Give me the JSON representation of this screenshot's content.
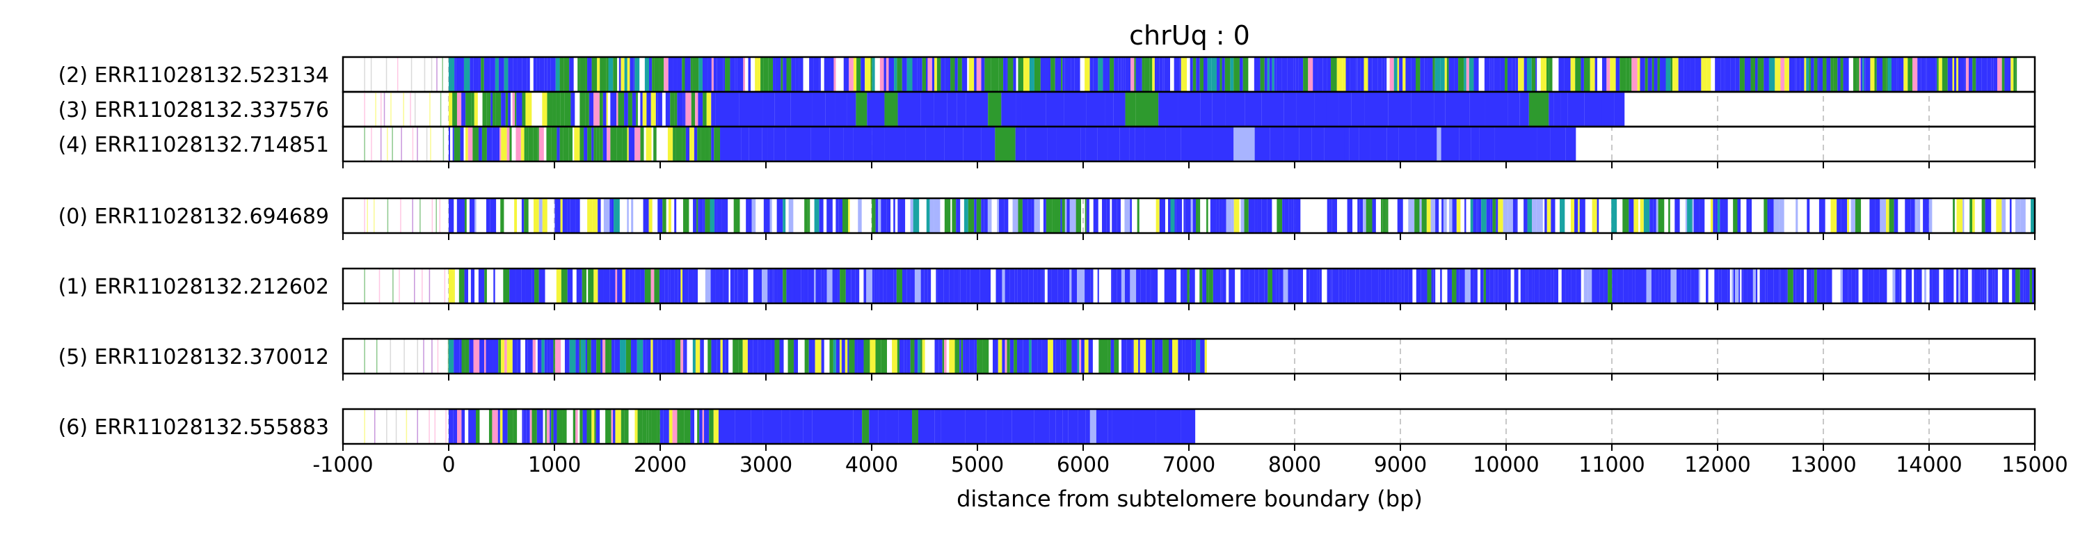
{
  "chart_data": {
    "type": "heatmap",
    "title": "chrUq : 0",
    "xlabel": "distance from subtelomere boundary (bp)",
    "ylabel": "",
    "xlim": [
      -1000,
      15000
    ],
    "x_ticks": [
      -1000,
      0,
      1000,
      2000,
      3000,
      4000,
      5000,
      6000,
      7000,
      8000,
      9000,
      10000,
      11000,
      12000,
      13000,
      14000,
      15000
    ],
    "x_tick_labels": [
      "-1000",
      "0",
      "1000",
      "2000",
      "3000",
      "4000",
      "5000",
      "6000",
      "7000",
      "8000",
      "9000",
      "10000",
      "11000",
      "12000",
      "13000",
      "14000",
      "15000"
    ],
    "grid": "vertical dashed at x ticks",
    "groups": [
      {
        "reads": [
          {
            "label": "(2) ERR11028132.523134",
            "start": -1000,
            "end": 14830,
            "style": "mixed"
          },
          {
            "label": "(3) ERR11028132.337576",
            "start": -1000,
            "end": 11120,
            "style": "solid-tail"
          },
          {
            "label": "(4) ERR11028132.714851",
            "start": -1000,
            "end": 10660,
            "style": "solid-tail"
          }
        ]
      },
      {
        "reads": [
          {
            "label": "(0) ERR11028132.694689",
            "start": -1000,
            "end": 15000,
            "style": "sparse"
          }
        ]
      },
      {
        "reads": [
          {
            "label": "(1) ERR11028132.212602",
            "start": -1000,
            "end": 15000,
            "style": "dense"
          }
        ]
      },
      {
        "reads": [
          {
            "label": "(5) ERR11028132.370012",
            "start": -1000,
            "end": 7170,
            "style": "mixed"
          }
        ]
      },
      {
        "reads": [
          {
            "label": "(6) ERR11028132.555883",
            "start": -1000,
            "end": 7060,
            "style": "solid-tail"
          }
        ]
      }
    ],
    "colors": {
      "blue": "#3333ff",
      "green": "#2e9a2e",
      "yellow": "#f5f53a",
      "pink": "#ff99cc",
      "purple": "#9a3fbf",
      "teal": "#1aa3a3",
      "light_blue": "#a8b4ff",
      "frame": "#000000",
      "grid": "#c8c8c8"
    }
  }
}
